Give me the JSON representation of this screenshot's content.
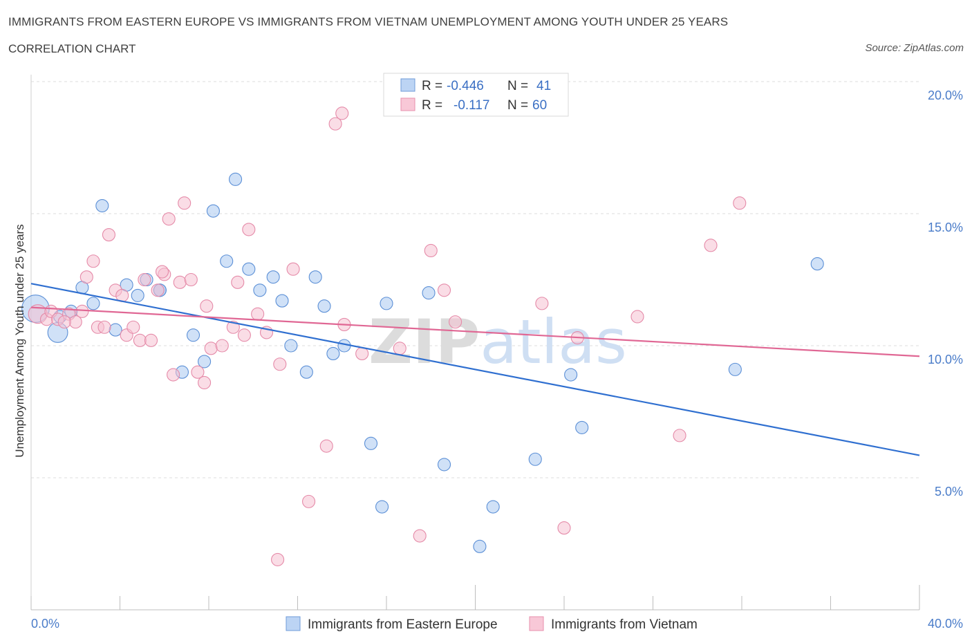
{
  "header": {
    "title": "IMMIGRANTS FROM EASTERN EUROPE VS IMMIGRANTS FROM VIETNAM UNEMPLOYMENT AMONG YOUTH UNDER 25 YEARS",
    "subtitle": "CORRELATION CHART",
    "source": "Source: ZipAtlas.com"
  },
  "watermark": "ZIPatlas",
  "legend": {
    "rows": [
      {
        "r_label": "R =",
        "r_value": "-0.446",
        "n_label": "N =",
        "n_value": "41"
      },
      {
        "r_label": "R =",
        "r_value": "-0.117",
        "n_label": "N =",
        "n_value": "60"
      }
    ]
  },
  "bottom_legend": [
    "Immigrants from Eastern Europe",
    "Immigrants from Vietnam"
  ],
  "chart_data": {
    "type": "scatter",
    "xlabel": "",
    "ylabel": "Unemployment Among Youth under 25 years",
    "xlim": [
      0,
      40
    ],
    "ylim": [
      0,
      20
    ],
    "x_tick_labels": [
      "0.0%",
      "40.0%"
    ],
    "y_ticks": [
      5,
      10,
      15,
      20
    ],
    "y_tick_labels": [
      "5.0%",
      "10.0%",
      "15.0%",
      "20.0%"
    ],
    "grid": "horizontal dashed",
    "legend_position": "top-center",
    "series": [
      {
        "name": "Immigrants from Eastern Europe",
        "color": "#a9c8f0",
        "stroke": "#5b8fd6",
        "trend_color": "#2f6fd0",
        "trend": {
          "x0": 0,
          "y0": 12.35,
          "x1": 40,
          "y1": 5.85
        },
        "points": [
          [
            0.2,
            11.4,
            2.2
          ],
          [
            1.2,
            10.5,
            1.6
          ],
          [
            1.3,
            11.1,
            1.0
          ],
          [
            1.8,
            11.3,
            1.0
          ],
          [
            2.3,
            12.2,
            1.0
          ],
          [
            2.8,
            11.6,
            1.0
          ],
          [
            3.2,
            15.3,
            1.0
          ],
          [
            3.8,
            10.6,
            1.0
          ],
          [
            4.3,
            12.3,
            1.0
          ],
          [
            4.8,
            11.9,
            1.0
          ],
          [
            5.2,
            12.5,
            1.0
          ],
          [
            5.8,
            12.1,
            1.0
          ],
          [
            6.8,
            9.0,
            1.0
          ],
          [
            7.3,
            10.4,
            1.0
          ],
          [
            8.2,
            15.1,
            1.0
          ],
          [
            7.8,
            9.4,
            1.0
          ],
          [
            8.8,
            13.2,
            1.0
          ],
          [
            9.2,
            16.3,
            1.0
          ],
          [
            9.8,
            12.9,
            1.0
          ],
          [
            10.3,
            12.1,
            1.0
          ],
          [
            10.9,
            12.6,
            1.0
          ],
          [
            11.3,
            11.7,
            1.0
          ],
          [
            11.7,
            10.0,
            1.0
          ],
          [
            12.4,
            9.0,
            1.0
          ],
          [
            12.8,
            12.6,
            1.0
          ],
          [
            13.2,
            11.5,
            1.0
          ],
          [
            13.6,
            9.7,
            1.0
          ],
          [
            14.1,
            10.0,
            1.0
          ],
          [
            15.3,
            6.3,
            1.0
          ],
          [
            15.8,
            3.9,
            1.0
          ],
          [
            16.0,
            11.6,
            1.0
          ],
          [
            17.9,
            12.0,
            1.0
          ],
          [
            18.6,
            5.5,
            1.0
          ],
          [
            20.2,
            2.4,
            1.0
          ],
          [
            20.8,
            3.9,
            1.0
          ],
          [
            22.7,
            5.7,
            1.0
          ],
          [
            24.3,
            8.9,
            1.0
          ],
          [
            24.8,
            6.9,
            1.0
          ],
          [
            31.7,
            9.1,
            1.0
          ],
          [
            35.4,
            13.1,
            1.0
          ],
          [
            5.8,
            12.1,
            1.0
          ]
        ]
      },
      {
        "name": "Immigrants from Vietnam",
        "color": "#f6c1d2",
        "stroke": "#e58aa8",
        "trend_color": "#e06794",
        "trend": {
          "x0": 0,
          "y0": 11.45,
          "x1": 40,
          "y1": 9.6
        },
        "points": [
          [
            0.3,
            11.2,
            1.5
          ],
          [
            0.7,
            11.0,
            1.0
          ],
          [
            0.9,
            11.3,
            1.0
          ],
          [
            1.2,
            11.0,
            1.0
          ],
          [
            1.7,
            11.2,
            1.0
          ],
          [
            2.0,
            10.9,
            1.0
          ],
          [
            2.3,
            11.3,
            1.0
          ],
          [
            2.5,
            12.6,
            1.0
          ],
          [
            2.8,
            13.2,
            1.0
          ],
          [
            3.0,
            10.7,
            1.0
          ],
          [
            3.3,
            10.7,
            1.0
          ],
          [
            3.5,
            14.2,
            1.0
          ],
          [
            3.8,
            12.1,
            1.0
          ],
          [
            4.1,
            11.9,
            1.0
          ],
          [
            4.3,
            10.4,
            1.0
          ],
          [
            4.6,
            10.7,
            1.0
          ],
          [
            4.9,
            10.2,
            1.0
          ],
          [
            5.1,
            12.5,
            1.0
          ],
          [
            5.4,
            10.2,
            1.0
          ],
          [
            5.7,
            12.1,
            1.0
          ],
          [
            6.0,
            12.7,
            1.0
          ],
          [
            6.2,
            14.8,
            1.0
          ],
          [
            6.4,
            8.9,
            1.0
          ],
          [
            6.7,
            12.4,
            1.0
          ],
          [
            6.9,
            15.4,
            1.0
          ],
          [
            7.2,
            12.5,
            1.0
          ],
          [
            7.5,
            9.0,
            1.0
          ],
          [
            7.8,
            8.6,
            1.0
          ],
          [
            7.9,
            11.5,
            1.0
          ],
          [
            8.1,
            9.9,
            1.0
          ],
          [
            8.6,
            10.0,
            1.0
          ],
          [
            9.1,
            10.7,
            1.0
          ],
          [
            9.3,
            12.4,
            1.0
          ],
          [
            9.6,
            10.4,
            1.0
          ],
          [
            9.8,
            14.4,
            1.0
          ],
          [
            10.2,
            11.2,
            1.0
          ],
          [
            10.6,
            10.5,
            1.0
          ],
          [
            11.2,
            9.3,
            1.0
          ],
          [
            11.8,
            12.9,
            1.0
          ],
          [
            12.5,
            4.1,
            1.0
          ],
          [
            11.1,
            1.9,
            1.0
          ],
          [
            13.3,
            6.2,
            1.0
          ],
          [
            13.7,
            18.4,
            1.0
          ],
          [
            14.0,
            18.8,
            1.0
          ],
          [
            14.1,
            10.8,
            1.0
          ],
          [
            14.9,
            9.7,
            1.0
          ],
          [
            16.6,
            9.9,
            1.0
          ],
          [
            17.5,
            2.8,
            1.0
          ],
          [
            18.0,
            13.6,
            1.0
          ],
          [
            18.6,
            12.1,
            1.0
          ],
          [
            19.1,
            10.9,
            1.0
          ],
          [
            23.0,
            11.6,
            1.0
          ],
          [
            24.6,
            10.3,
            1.0
          ],
          [
            24.0,
            3.1,
            1.0
          ],
          [
            27.3,
            11.1,
            1.0
          ],
          [
            29.2,
            6.6,
            1.0
          ],
          [
            30.6,
            13.8,
            1.0
          ],
          [
            31.9,
            15.4,
            1.0
          ],
          [
            5.9,
            12.8,
            1.0
          ],
          [
            1.5,
            10.9,
            1.0
          ]
        ]
      }
    ]
  }
}
